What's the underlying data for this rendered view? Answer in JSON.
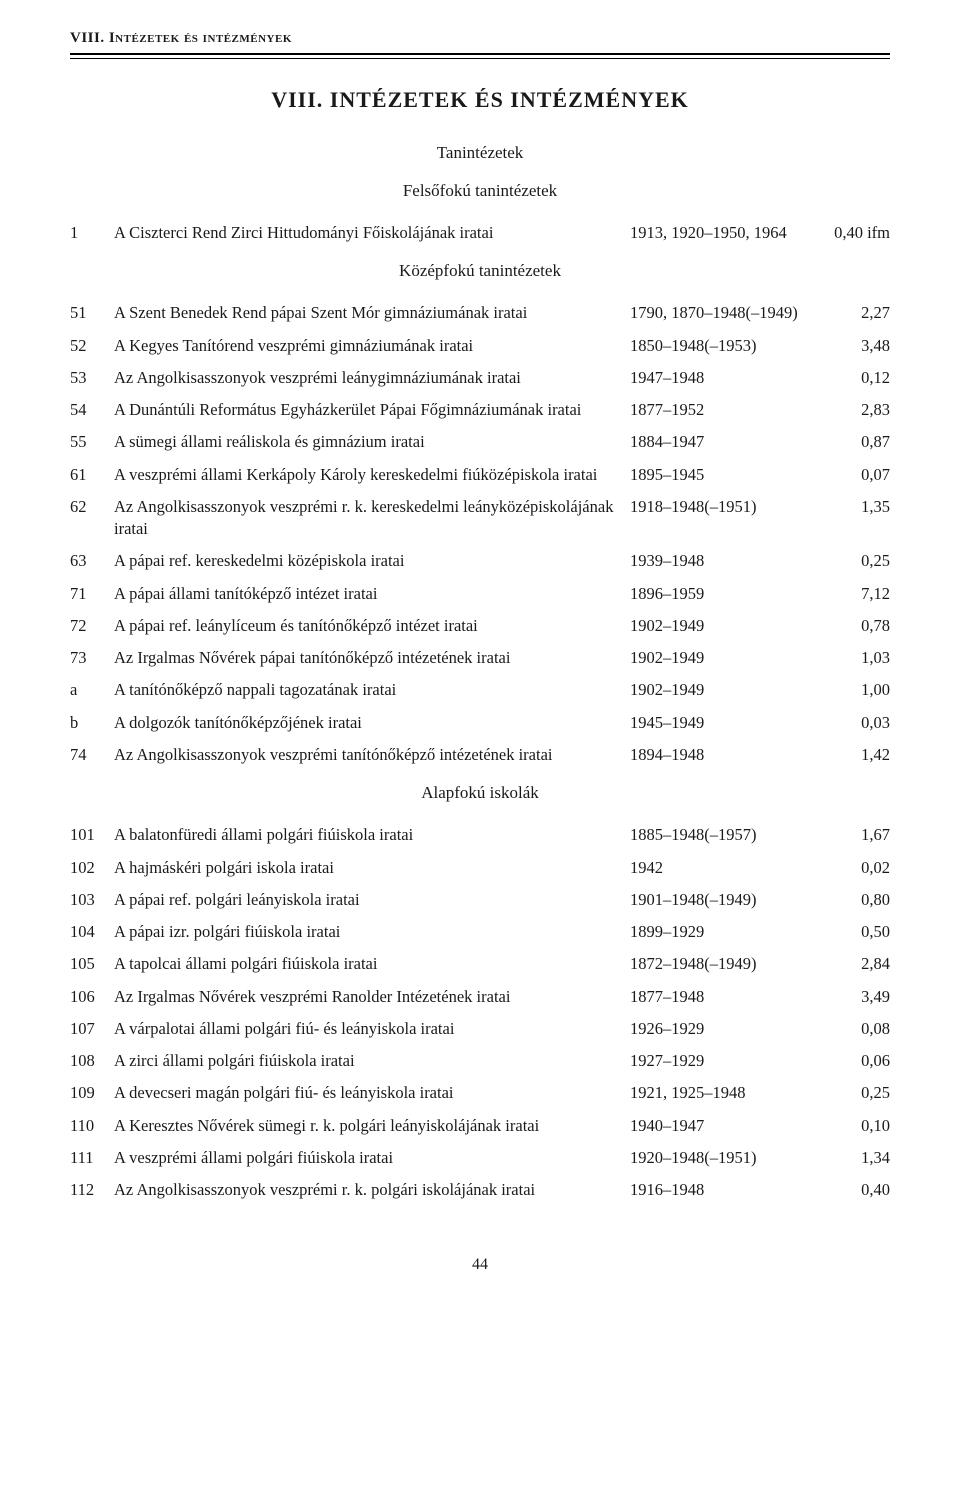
{
  "running_header": "VIII. Intézetek és intézmények",
  "title": "VIII. INTÉZETEK ÉS INTÉZMÉNYEK",
  "page_number": "44",
  "sections": [
    {
      "heading": "Tanintézetek",
      "subsections": [
        {
          "heading": "Felsőfokú tanintézetek",
          "rows": [
            {
              "id": "1",
              "desc": "A Ciszterci Rend Zirci Hittudományi Főiskolájának iratai",
              "date": "1913, 1920–1950, 1964",
              "val": "0,40 ifm"
            }
          ]
        },
        {
          "heading": "Középfokú tanintézetek",
          "rows": [
            {
              "id": "51",
              "desc": "A Szent Benedek Rend pápai Szent Mór gimnáziumának iratai",
              "date": "1790, 1870–1948(–1949)",
              "val": "2,27"
            },
            {
              "id": "52",
              "desc": "A Kegyes Tanítórend veszprémi gimnáziumának iratai",
              "date": "1850–1948(–1953)",
              "val": "3,48"
            },
            {
              "id": "53",
              "desc": "Az Angolkisasszonyok veszprémi leánygimnáziumának iratai",
              "date": "1947–1948",
              "val": "0,12"
            },
            {
              "id": "54",
              "desc": "A Dunántúli Református Egyházkerület Pápai Főgimnáziumának iratai",
              "date": "1877–1952",
              "val": "2,83"
            },
            {
              "id": "55",
              "desc": "A sümegi állami reáliskola és gimnázium iratai",
              "date": "1884–1947",
              "val": "0,87"
            },
            {
              "id": "61",
              "desc": "A veszprémi állami Kerkápoly Károly kereskedelmi fiúközépiskola iratai",
              "date": "1895–1945",
              "val": "0,07"
            },
            {
              "id": "62",
              "desc": "Az Angolkisasszonyok veszprémi r. k. kereskedelmi leányközépiskolájának iratai",
              "date": "1918–1948(–1951)",
              "val": "1,35"
            },
            {
              "id": "63",
              "desc": "A pápai ref. kereskedelmi középiskola iratai",
              "date": "1939–1948",
              "val": "0,25"
            },
            {
              "id": "71",
              "desc": "A pápai állami tanítóképző intézet iratai",
              "date": "1896–1959",
              "val": "7,12"
            },
            {
              "id": "72",
              "desc": "A pápai ref. leánylíceum és tanítónőképző intézet iratai",
              "date": "1902–1949",
              "val": "0,78"
            },
            {
              "id": "73",
              "desc": "Az Irgalmas Nővérek pápai tanítónőképző intézetének iratai",
              "date": "1902–1949",
              "val": "1,03",
              "subrows": [
                {
                  "sub": "a",
                  "desc": "A tanítónőképző nappali tagozatának iratai",
                  "date": "1902–1949",
                  "val": "1,00"
                },
                {
                  "sub": "b",
                  "desc": "A dolgozók tanítónőképzőjének iratai",
                  "date": "1945–1949",
                  "val": "0,03"
                }
              ]
            },
            {
              "id": "74",
              "desc": "Az Angolkisasszonyok veszprémi tanítónőképző intézetének iratai",
              "date": "1894–1948",
              "val": "1,42"
            }
          ]
        },
        {
          "heading": "Alapfokú iskolák",
          "rows": [
            {
              "id": "101",
              "desc": "A balatonfüredi állami polgári fiúiskola iratai",
              "date": "1885–1948(–1957)",
              "val": "1,67"
            },
            {
              "id": "102",
              "desc": "A hajmáskéri polgári iskola iratai",
              "date": "1942",
              "val": "0,02"
            },
            {
              "id": "103",
              "desc": "A pápai ref. polgári leányiskola iratai",
              "date": "1901–1948(–1949)",
              "val": "0,80"
            },
            {
              "id": "104",
              "desc": "A pápai izr. polgári fiúiskola iratai",
              "date": "1899–1929",
              "val": "0,50"
            },
            {
              "id": "105",
              "desc": "A tapolcai állami polgári fiúiskola iratai",
              "date": "1872–1948(–1949)",
              "val": "2,84"
            },
            {
              "id": "106",
              "desc": "Az Irgalmas Nővérek veszprémi Ranolder Intézetének iratai",
              "date": "1877–1948",
              "val": "3,49"
            },
            {
              "id": "107",
              "desc": "A várpalotai állami polgári fiú- és leányiskola iratai",
              "date": "1926–1929",
              "val": "0,08"
            },
            {
              "id": "108",
              "desc": "A zirci állami polgári fiúiskola iratai",
              "date": "1927–1929",
              "val": "0,06"
            },
            {
              "id": "109",
              "desc": "A devecseri magán polgári fiú- és leányiskola iratai",
              "date": "1921, 1925–1948",
              "val": "0,25"
            },
            {
              "id": "110",
              "desc": "A Keresztes Nővérek sümegi r. k. polgári leányiskolájának iratai",
              "date": "1940–1947",
              "val": "0,10"
            },
            {
              "id": "111",
              "desc": "A veszprémi állami polgári fiúiskola iratai",
              "date": "1920–1948(–1951)",
              "val": "1,34"
            },
            {
              "id": "112",
              "desc": "Az Angolkisasszonyok veszprémi r. k. polgári iskolájának iratai",
              "date": "1916–1948",
              "val": "0,40"
            }
          ]
        }
      ]
    }
  ]
}
